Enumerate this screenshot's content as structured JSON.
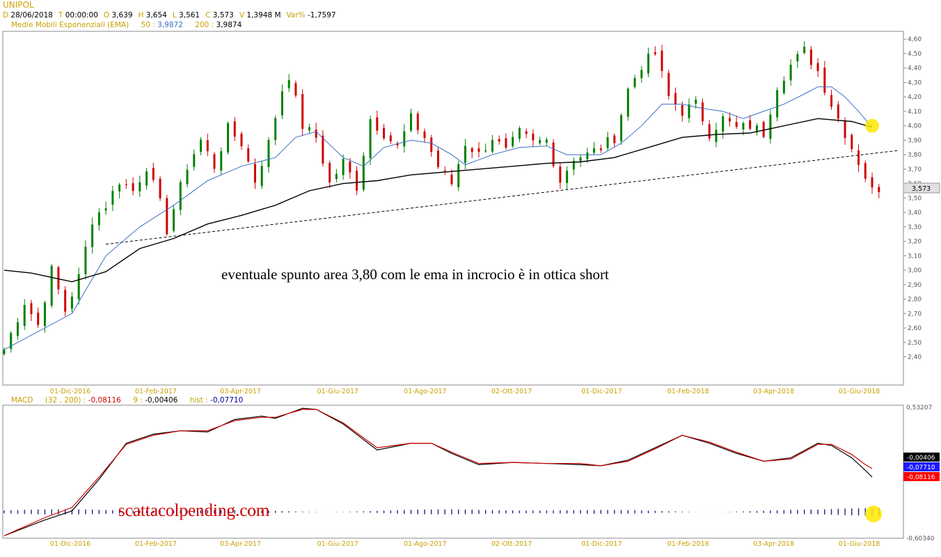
{
  "header": {
    "symbol": "UNIPOL",
    "ohlc": [
      {
        "k": "D",
        "v": "28/06/2018"
      },
      {
        "k": "T",
        "v": "00:00:00"
      },
      {
        "k": "O",
        "v": "3,639"
      },
      {
        "k": "H",
        "v": "3,654"
      },
      {
        "k": "L",
        "v": "3,561"
      },
      {
        "k": "C",
        "v": "3,573"
      },
      {
        "k": "V",
        "v": "1,3948 M"
      },
      {
        "k": "Var%",
        "v": "-1,7597"
      }
    ],
    "ema_label": "Medie Mobili Esponenziali (EMA)",
    "ema_50_label": "50 :",
    "ema_50_value": "3,9872",
    "ema_200_label": "200 :",
    "ema_200_value": "3,9874",
    "macd_label": "MACD",
    "macd_params": "(32 , 200) :",
    "macd_value": "-0,08116",
    "signal_label": "9 :",
    "signal_value": "-0,00406",
    "hist_label": "hist :",
    "hist_value": "-0,07710"
  },
  "colors": {
    "up": "#008000",
    "down": "#d00000",
    "ema50": "#3a6fc4",
    "ema200": "#000000",
    "axis_text": "#c8a000",
    "highlight": "#ffe800",
    "macd_line": "#000000",
    "signal_line": "#d00000",
    "hist": "#1a237e"
  },
  "annotations": {
    "main_text": "eventuale spunto area 3,80 com le ema in incrocio è in ottica short",
    "watermark": "scattacolpending.com"
  },
  "chart_data": [
    {
      "type": "candlestick",
      "title": "UNIPOL",
      "x_ticks": [
        "01-Dic-2016",
        "01-Feb-2017",
        "03-Apr-2017",
        "01-Giu-2017",
        "01-Ago-2017",
        "02-Ott-2017",
        "01-Dic-2017",
        "01-Feb-2018",
        "03-Apr-2018",
        "01-Giu-2018"
      ],
      "y_ticks": [
        "2,40",
        "2,50",
        "2,60",
        "2,70",
        "2,80",
        "2,90",
        "3,00",
        "3,10",
        "3,20",
        "3,30",
        "3,40",
        "3,50",
        "3,60",
        "3,70",
        "3,80",
        "3,90",
        "4,00",
        "4,10",
        "4,20",
        "4,30",
        "4,40",
        "4,50",
        "4,60"
      ],
      "ylim": [
        2.34,
        4.63
      ],
      "last_price_label": "3,573",
      "price_path": [
        [
          0,
          2.45
        ],
        [
          3,
          2.78
        ],
        [
          5,
          2.62
        ],
        [
          7,
          3.0
        ],
        [
          9,
          2.72
        ],
        [
          11,
          2.95
        ],
        [
          13,
          3.35
        ],
        [
          15,
          3.45
        ],
        [
          17,
          3.62
        ],
        [
          19,
          3.55
        ],
        [
          21,
          3.72
        ],
        [
          23,
          3.46
        ],
        [
          24,
          3.28
        ],
        [
          27,
          3.72
        ],
        [
          29,
          3.9
        ],
        [
          31,
          3.72
        ],
        [
          33,
          3.98
        ],
        [
          35,
          3.88
        ],
        [
          37,
          3.62
        ],
        [
          39,
          3.88
        ],
        [
          41,
          4.25
        ],
        [
          42,
          4.35
        ],
        [
          44,
          4.0
        ],
        [
          46,
          3.92
        ],
        [
          48,
          3.6
        ],
        [
          50,
          3.75
        ],
        [
          52,
          3.58
        ],
        [
          54,
          4.05
        ],
        [
          56,
          3.95
        ],
        [
          58,
          3.85
        ],
        [
          60,
          4.05
        ],
        [
          62,
          3.92
        ],
        [
          64,
          3.72
        ],
        [
          66,
          3.6
        ],
        [
          68,
          3.88
        ],
        [
          70,
          3.8
        ],
        [
          72,
          3.92
        ],
        [
          74,
          3.82
        ],
        [
          76,
          3.95
        ],
        [
          78,
          3.88
        ],
        [
          80,
          3.9
        ],
        [
          82,
          3.62
        ],
        [
          84,
          3.78
        ],
        [
          86,
          3.8
        ],
        [
          88,
          3.85
        ],
        [
          90,
          3.92
        ],
        [
          92,
          4.25
        ],
        [
          94,
          4.42
        ],
        [
          96,
          4.5
        ],
        [
          98,
          4.2
        ],
        [
          100,
          4.1
        ],
        [
          102,
          4.15
        ],
        [
          104,
          3.95
        ],
        [
          106,
          4.05
        ],
        [
          108,
          3.98
        ],
        [
          110,
          4.0
        ],
        [
          112,
          3.95
        ],
        [
          114,
          4.28
        ],
        [
          116,
          4.42
        ],
        [
          118,
          4.52
        ],
        [
          120,
          4.38
        ],
        [
          122,
          4.15
        ],
        [
          123,
          4.05
        ],
        [
          125,
          3.85
        ],
        [
          127,
          3.65
        ],
        [
          128,
          3.55
        ],
        [
          129,
          3.57
        ]
      ],
      "series": [
        {
          "name": "50",
          "values": [
            [
              0,
              2.45
            ],
            [
              10,
              2.7
            ],
            [
              15,
              3.1
            ],
            [
              20,
              3.3
            ],
            [
              25,
              3.45
            ],
            [
              30,
              3.62
            ],
            [
              35,
              3.72
            ],
            [
              40,
              3.78
            ],
            [
              43,
              3.92
            ],
            [
              46,
              3.96
            ],
            [
              50,
              3.78
            ],
            [
              53,
              3.72
            ],
            [
              56,
              3.85
            ],
            [
              60,
              3.9
            ],
            [
              63,
              3.88
            ],
            [
              66,
              3.8
            ],
            [
              68,
              3.73
            ],
            [
              72,
              3.8
            ],
            [
              76,
              3.85
            ],
            [
              80,
              3.86
            ],
            [
              83,
              3.8
            ],
            [
              86,
              3.8
            ],
            [
              88,
              3.8
            ],
            [
              91,
              3.88
            ],
            [
              94,
              4.0
            ],
            [
              97,
              4.15
            ],
            [
              100,
              4.15
            ],
            [
              103,
              4.12
            ],
            [
              106,
              4.1
            ],
            [
              109,
              4.05
            ],
            [
              112,
              4.1
            ],
            [
              115,
              4.15
            ],
            [
              118,
              4.22
            ],
            [
              120,
              4.27
            ],
            [
              122,
              4.27
            ],
            [
              124,
              4.2
            ],
            [
              126,
              4.1
            ],
            [
              128,
              3.99
            ]
          ]
        },
        {
          "name": "200",
          "values": [
            [
              0,
              3.0
            ],
            [
              4,
              2.98
            ],
            [
              10,
              2.92
            ],
            [
              15,
              2.99
            ],
            [
              20,
              3.15
            ],
            [
              25,
              3.22
            ],
            [
              30,
              3.32
            ],
            [
              35,
              3.38
            ],
            [
              40,
              3.45
            ],
            [
              45,
              3.55
            ],
            [
              50,
              3.6
            ],
            [
              55,
              3.62
            ],
            [
              60,
              3.66
            ],
            [
              65,
              3.68
            ],
            [
              70,
              3.7
            ],
            [
              75,
              3.72
            ],
            [
              80,
              3.74
            ],
            [
              85,
              3.75
            ],
            [
              90,
              3.78
            ],
            [
              95,
              3.85
            ],
            [
              100,
              3.92
            ],
            [
              105,
              3.94
            ],
            [
              110,
              3.95
            ],
            [
              115,
              4.0
            ],
            [
              120,
              4.05
            ],
            [
              125,
              4.03
            ],
            [
              128,
              3.99
            ]
          ]
        }
      ],
      "trendline": {
        "from": [
          15,
          3.18
        ],
        "to": [
          132,
          3.83
        ]
      }
    },
    {
      "type": "line",
      "title": "MACD",
      "ylim": [
        -0.6034,
        0.53207
      ],
      "y_ticks": [
        "0,53207",
        "-0,60340"
      ],
      "value_tags": [
        "-0,00406",
        "-0,07710",
        "-0,08116"
      ],
      "series": [
        {
          "name": "MACD",
          "values": [
            [
              0,
              -0.6
            ],
            [
              6,
              -0.46
            ],
            [
              10,
              -0.38
            ],
            [
              14,
              -0.1
            ],
            [
              18,
              0.22
            ],
            [
              22,
              0.3
            ],
            [
              26,
              0.33
            ],
            [
              30,
              0.32
            ],
            [
              34,
              0.43
            ],
            [
              38,
              0.46
            ],
            [
              40,
              0.44
            ],
            [
              44,
              0.53
            ],
            [
              46,
              0.52
            ],
            [
              50,
              0.39
            ],
            [
              55,
              0.16
            ],
            [
              60,
              0.22
            ],
            [
              63,
              0.22
            ],
            [
              66,
              0.13
            ],
            [
              70,
              0.03
            ],
            [
              75,
              0.05
            ],
            [
              80,
              0.04
            ],
            [
              85,
              0.03
            ],
            [
              88,
              0.02
            ],
            [
              92,
              0.07
            ],
            [
              96,
              0.18
            ],
            [
              100,
              0.29
            ],
            [
              104,
              0.22
            ],
            [
              108,
              0.13
            ],
            [
              112,
              0.06
            ],
            [
              116,
              0.09
            ],
            [
              120,
              0.22
            ],
            [
              122,
              0.2
            ],
            [
              125,
              0.09
            ],
            [
              127,
              -0.02
            ],
            [
              128,
              -0.08
            ]
          ]
        },
        {
          "name": "9",
          "values": [
            [
              0,
              -0.6
            ],
            [
              6,
              -0.44
            ],
            [
              10,
              -0.35
            ],
            [
              14,
              -0.08
            ],
            [
              18,
              0.21
            ],
            [
              22,
              0.29
            ],
            [
              26,
              0.33
            ],
            [
              30,
              0.33
            ],
            [
              34,
              0.42
            ],
            [
              38,
              0.45
            ],
            [
              40,
              0.45
            ],
            [
              44,
              0.52
            ],
            [
              46,
              0.52
            ],
            [
              50,
              0.4
            ],
            [
              55,
              0.18
            ],
            [
              60,
              0.22
            ],
            [
              63,
              0.22
            ],
            [
              66,
              0.14
            ],
            [
              70,
              0.04
            ],
            [
              75,
              0.05
            ],
            [
              80,
              0.04
            ],
            [
              85,
              0.04
            ],
            [
              88,
              0.02
            ],
            [
              92,
              0.06
            ],
            [
              96,
              0.17
            ],
            [
              100,
              0.29
            ],
            [
              104,
              0.23
            ],
            [
              108,
              0.14
            ],
            [
              112,
              0.06
            ],
            [
              116,
              0.08
            ],
            [
              120,
              0.21
            ],
            [
              122,
              0.21
            ],
            [
              125,
              0.12
            ],
            [
              127,
              0.03
            ],
            [
              128,
              -0.004
            ]
          ]
        }
      ]
    }
  ]
}
